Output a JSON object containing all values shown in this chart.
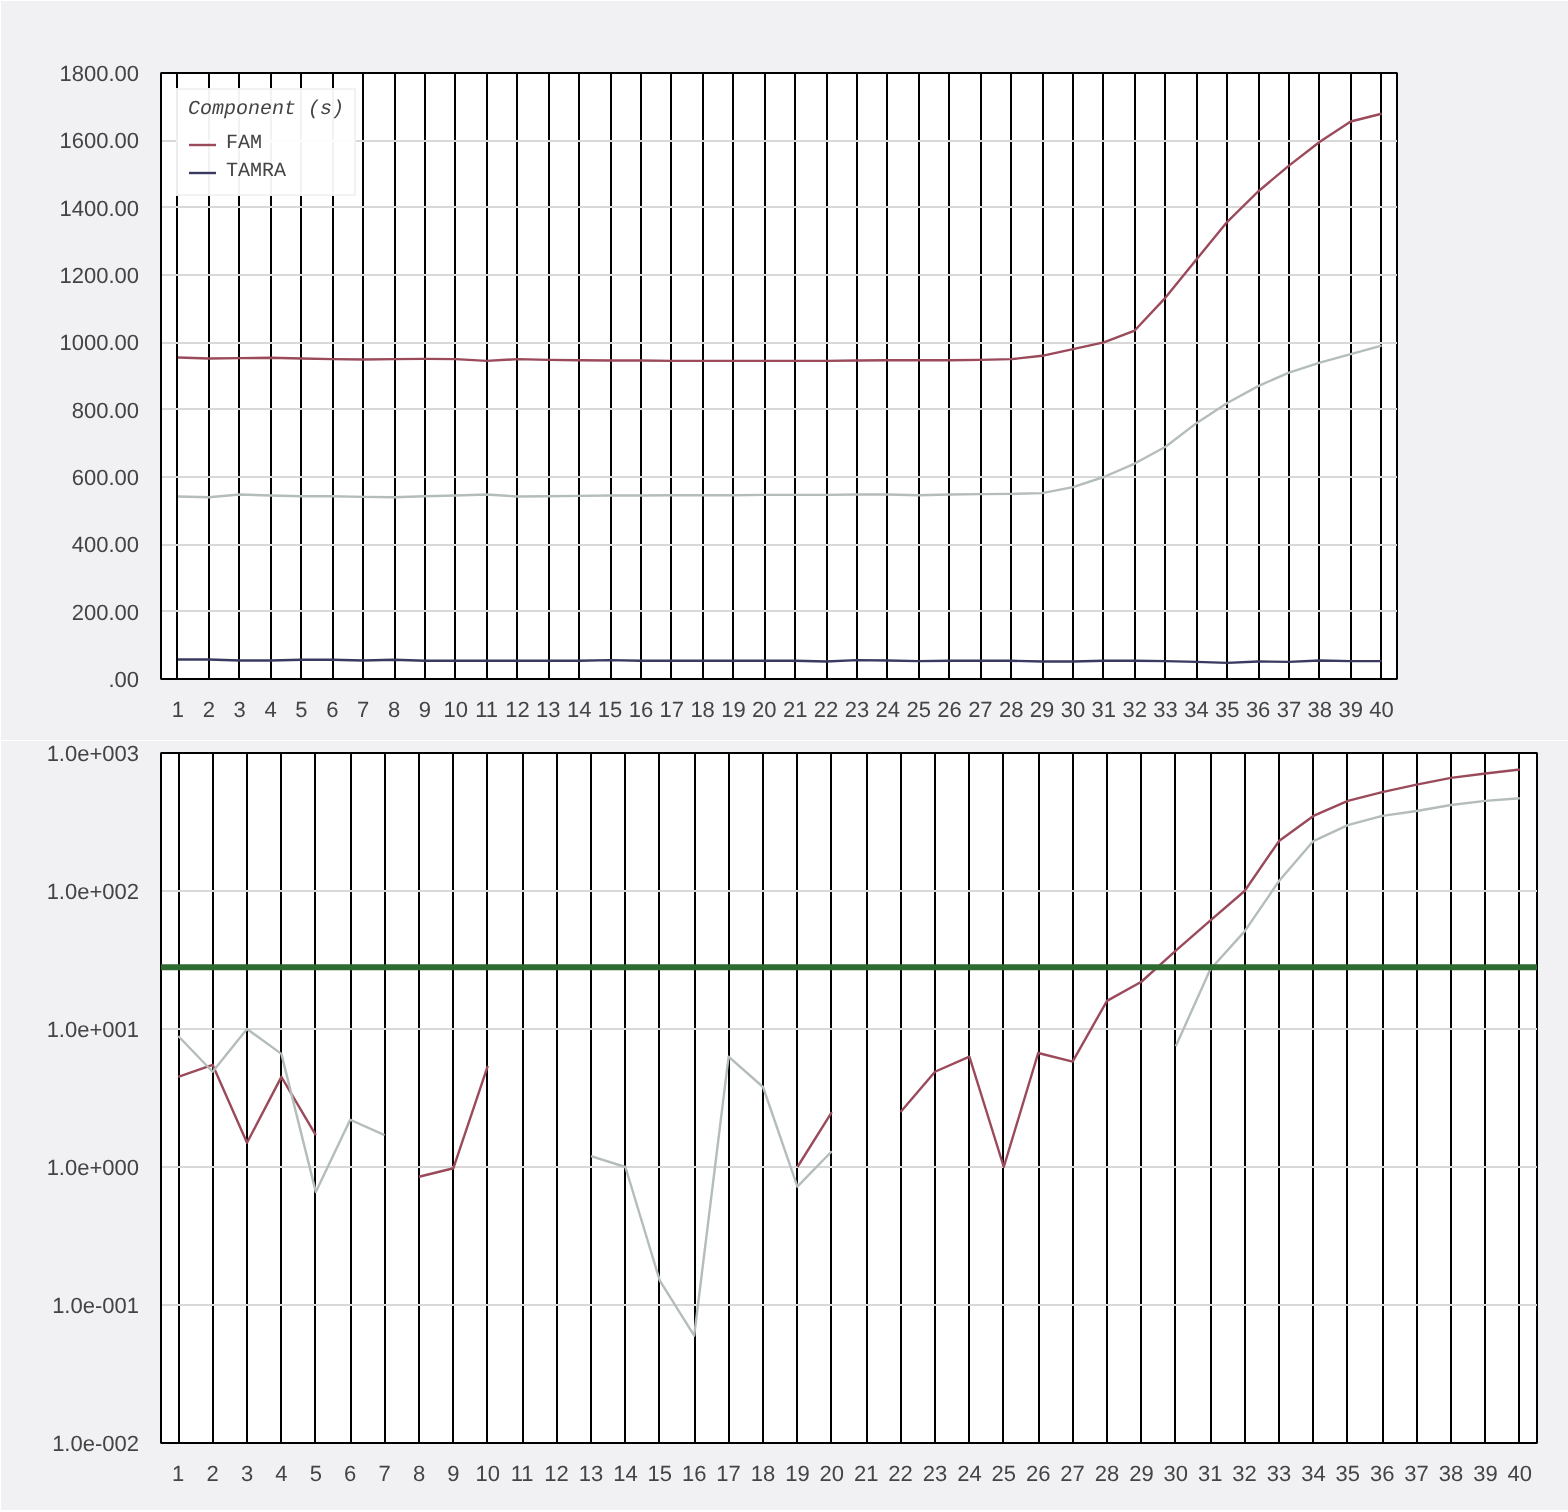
{
  "chart_data": [
    {
      "type": "line",
      "x": [
        1,
        2,
        3,
        4,
        5,
        6,
        7,
        8,
        9,
        10,
        11,
        12,
        13,
        14,
        15,
        16,
        17,
        18,
        19,
        20,
        21,
        22,
        23,
        24,
        25,
        26,
        27,
        28,
        29,
        30,
        31,
        32,
        33,
        34,
        35,
        36,
        37,
        38,
        39,
        40
      ],
      "xlim": [
        0.45,
        40.5
      ],
      "xticks": [
        1,
        2,
        3,
        4,
        5,
        6,
        7,
        8,
        9,
        10,
        11,
        12,
        13,
        14,
        15,
        16,
        17,
        18,
        19,
        20,
        21,
        22,
        23,
        24,
        25,
        26,
        27,
        28,
        29,
        30,
        31,
        32,
        33,
        34,
        35,
        36,
        37,
        38,
        39,
        40
      ],
      "ylim": [
        0,
        1800
      ],
      "yticks": [
        {
          "value": 0,
          "label": ".00"
        },
        {
          "value": 200,
          "label": "200.00"
        },
        {
          "value": 400,
          "label": "400.00"
        },
        {
          "value": 600,
          "label": "600.00"
        },
        {
          "value": 800,
          "label": "800.00"
        },
        {
          "value": 1000,
          "label": "1000.00"
        },
        {
          "value": 1200,
          "label": "1200.00"
        },
        {
          "value": 1400,
          "label": "1400.00"
        },
        {
          "value": 1600,
          "label": "1600.00"
        },
        {
          "value": 1800,
          "label": "1800.00"
        }
      ],
      "grid": true,
      "legend": "top left",
      "legend_title": "Component (s)",
      "series": [
        {
          "name": "FAM",
          "color": "#9a4a5a",
          "values": [
            955,
            952,
            953,
            954,
            952,
            950,
            949,
            950,
            951,
            950,
            945,
            950,
            948,
            947,
            946,
            946,
            945,
            945,
            945,
            945,
            945,
            945,
            946,
            947,
            947,
            947,
            948,
            950,
            960,
            980,
            1000,
            1035,
            1133,
            1246,
            1358,
            1448,
            1525,
            1596,
            1656,
            1679
          ]
        },
        {
          "name": "TAMRA",
          "color": "#3a3a60",
          "values": [
            58,
            58,
            55,
            55,
            57,
            57,
            55,
            57,
            54,
            54,
            54,
            54,
            54,
            54,
            56,
            54,
            54,
            54,
            54,
            54,
            54,
            52,
            56,
            55,
            53,
            54,
            54,
            54,
            52,
            52,
            54,
            54,
            53,
            51,
            48,
            52,
            51,
            55,
            53,
            53
          ]
        },
        {
          "color": "#b4bcbc",
          "values": [
            542,
            540,
            548,
            545,
            543,
            543,
            541,
            540,
            543,
            545,
            548,
            542,
            543,
            544,
            545,
            545,
            546,
            546,
            546,
            547,
            547,
            547,
            548,
            548,
            546,
            548,
            549,
            550,
            552,
            570,
            600,
            640,
            690,
            760,
            820,
            870,
            910,
            940,
            965,
            990
          ]
        }
      ]
    },
    {
      "type": "line",
      "log": true,
      "x": [
        1,
        2,
        3,
        4,
        5,
        6,
        7,
        8,
        9,
        10,
        11,
        12,
        13,
        14,
        15,
        16,
        17,
        18,
        19,
        20,
        21,
        22,
        23,
        24,
        25,
        26,
        27,
        28,
        29,
        30,
        31,
        32,
        33,
        34,
        35,
        36,
        37,
        38,
        39,
        40
      ],
      "xlim": [
        0.5,
        40.5
      ],
      "xticks": [
        1,
        2,
        3,
        4,
        5,
        6,
        7,
        8,
        9,
        10,
        11,
        12,
        13,
        14,
        15,
        16,
        17,
        18,
        19,
        20,
        21,
        22,
        23,
        24,
        25,
        26,
        27,
        28,
        29,
        30,
        31,
        32,
        33,
        34,
        35,
        36,
        37,
        38,
        39,
        40
      ],
      "ylim": [
        0.01,
        1000
      ],
      "yticks": [
        {
          "value": 0.01,
          "label": "1.0e-002"
        },
        {
          "value": 0.1,
          "label": "1.0e-001"
        },
        {
          "value": 1,
          "label": "1.0e+000"
        },
        {
          "value": 10,
          "label": "1.0e+001"
        },
        {
          "value": 100,
          "label": "1.0e+002"
        },
        {
          "value": 1000,
          "label": "1.0e+003"
        }
      ],
      "grid": true,
      "ref_lines": [
        {
          "axis": "y",
          "value": 28,
          "color": "#2e6b30"
        }
      ],
      "series": [
        {
          "color": "#9a4a5a",
          "values": [
            4.5,
            5.5,
            1.5,
            4.5,
            1.7,
            null,
            null,
            0.85,
            0.98,
            5.4,
            null,
            null,
            null,
            null,
            null,
            null,
            null,
            null,
            1.0,
            2.5,
            null,
            2.5,
            4.9,
            6.3,
            1.0,
            6.7,
            5.8,
            16,
            22,
            37,
            61,
            100,
            230,
            350,
            450,
            520,
            590,
            660,
            710,
            760
          ]
        },
        {
          "color": "#b4bcbc",
          "values": [
            8.9,
            4.9,
            10,
            6.6,
            0.66,
            2.2,
            1.7,
            null,
            null,
            null,
            null,
            null,
            1.2,
            1.0,
            0.15,
            0.06,
            6.3,
            3.8,
            0.72,
            1.3,
            null,
            null,
            null,
            null,
            null,
            null,
            null,
            null,
            null,
            7.5,
            27,
            51,
            118,
            230,
            300,
            350,
            380,
            420,
            450,
            470
          ]
        }
      ]
    }
  ]
}
